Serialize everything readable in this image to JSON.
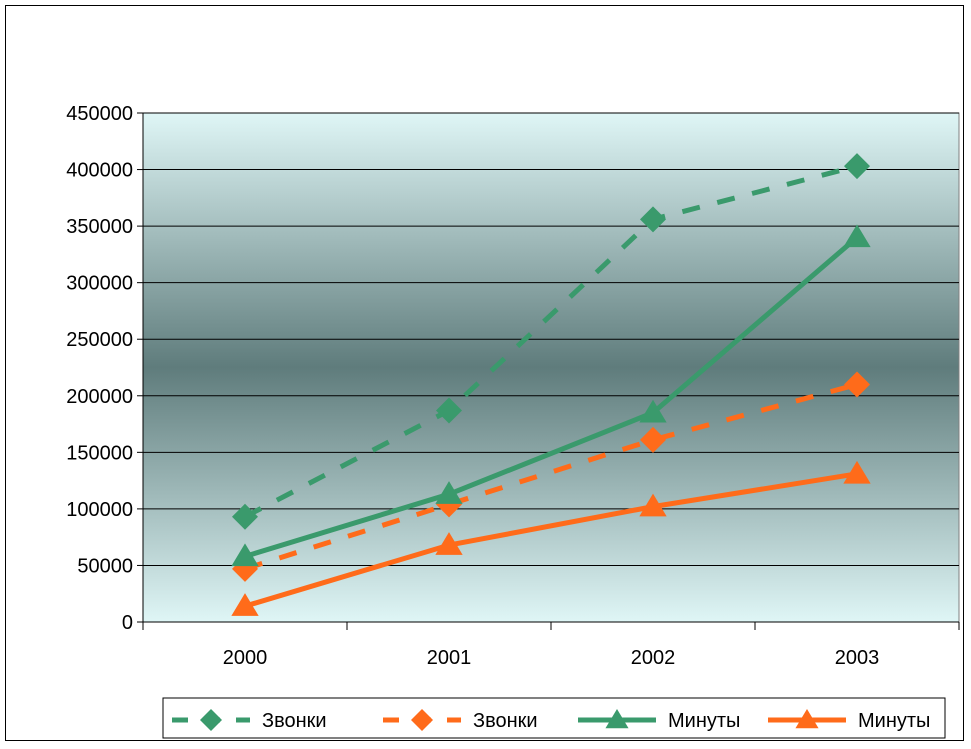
{
  "chart_data": {
    "type": "line",
    "categories": [
      "2000",
      "2001",
      "2002",
      "2003"
    ],
    "ylim": [
      0,
      450000
    ],
    "y_ticks": [
      0,
      50000,
      100000,
      150000,
      200000,
      250000,
      300000,
      350000,
      400000,
      450000
    ],
    "grid": true,
    "legend": "bottom",
    "series": [
      {
        "name": "Звонки",
        "values": [
          93000,
          187000,
          356000,
          403000
        ],
        "color": "#3A9A6C",
        "dash": true,
        "marker": "diamond"
      },
      {
        "name": "Звонки",
        "values": [
          47000,
          104000,
          161000,
          210000
        ],
        "color": "#FF6B1A",
        "dash": true,
        "marker": "diamond"
      },
      {
        "name": "Минуты",
        "values": [
          58000,
          113000,
          185000,
          340000
        ],
        "color": "#3A9A6C",
        "dash": false,
        "marker": "triangle"
      },
      {
        "name": "Минуты",
        "values": [
          14000,
          68000,
          102000,
          131000
        ],
        "color": "#FF6B1A",
        "dash": false,
        "marker": "triangle"
      }
    ]
  }
}
